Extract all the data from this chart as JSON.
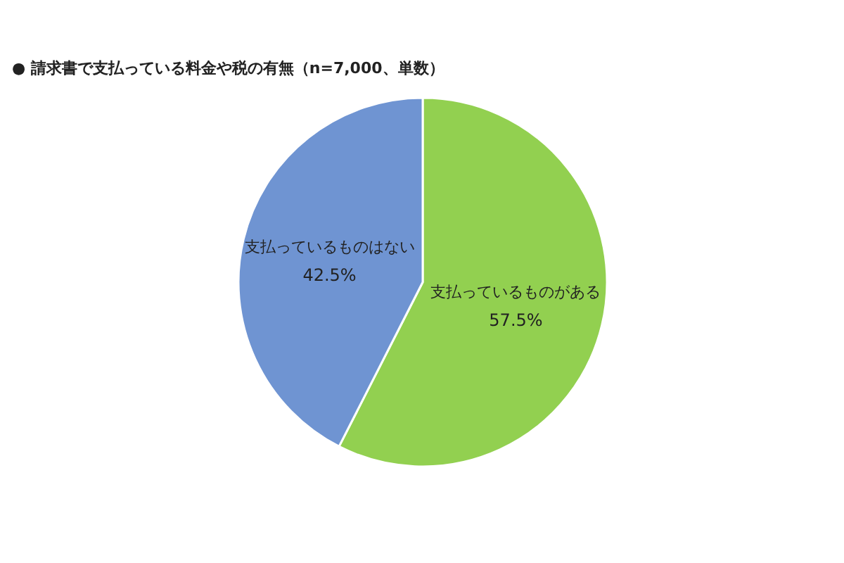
{
  "chart_data": {
    "type": "pie",
    "title": "●  請求書で支払っている料金や税の有無（n=7,000、単数）",
    "categories": [
      "支払っているものがある",
      "支払っているものはない"
    ],
    "values": [
      57.5,
      42.5
    ],
    "colors": [
      "#92d050",
      "#6f94d2"
    ],
    "value_labels": [
      "57.5%",
      "42.5%"
    ]
  }
}
